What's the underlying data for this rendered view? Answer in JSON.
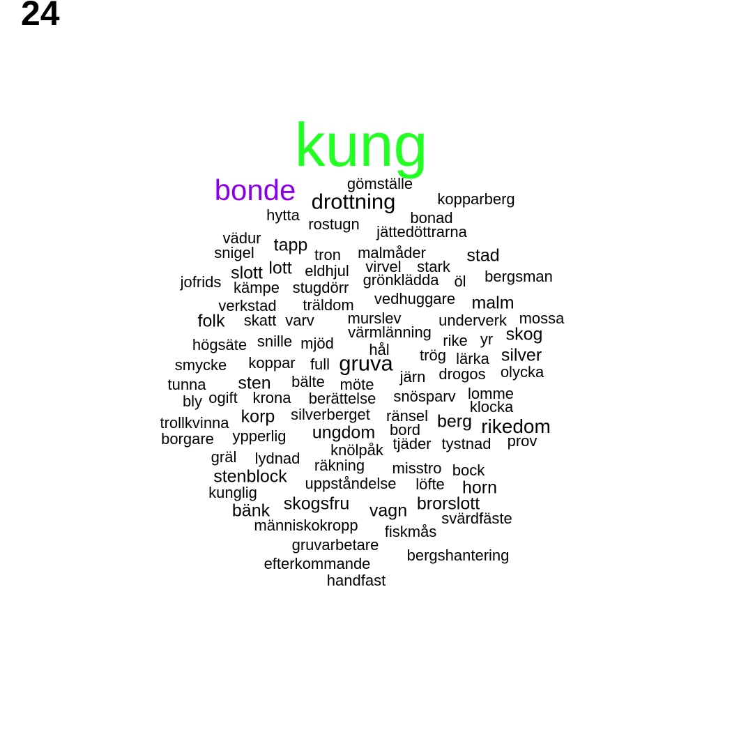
{
  "page_number": "24",
  "colors": {
    "primary": "#22ff22",
    "secondary": "#8a00e6",
    "default": "#000000"
  },
  "words": [
    {
      "text": "kung",
      "weight": 1,
      "color": "primary"
    },
    {
      "text": "bonde",
      "weight": 2,
      "color": "secondary"
    },
    {
      "text": "drottning",
      "weight": 3
    },
    {
      "text": "gömställe",
      "weight": 4
    },
    {
      "text": "kopparberg",
      "weight": 4
    },
    {
      "text": "hytta",
      "weight": 4
    },
    {
      "text": "bonad",
      "weight": 4
    },
    {
      "text": "rostugn",
      "weight": 4
    },
    {
      "text": "jättedöttrarna",
      "weight": 4
    },
    {
      "text": "vädur",
      "weight": 4
    },
    {
      "text": "tapp",
      "weight": 3
    },
    {
      "text": "snigel",
      "weight": 4
    },
    {
      "text": "tron",
      "weight": 4
    },
    {
      "text": "malmåder",
      "weight": 4
    },
    {
      "text": "stad",
      "weight": 3
    },
    {
      "text": "slott",
      "weight": 3
    },
    {
      "text": "lott",
      "weight": 3
    },
    {
      "text": "eldhjul",
      "weight": 4
    },
    {
      "text": "virvel",
      "weight": 4
    },
    {
      "text": "stark",
      "weight": 4
    },
    {
      "text": "bergsman",
      "weight": 4
    },
    {
      "text": "jofrids",
      "weight": 4
    },
    {
      "text": "kämpe",
      "weight": 4
    },
    {
      "text": "stugdörr",
      "weight": 4
    },
    {
      "text": "grönklädda",
      "weight": 4
    },
    {
      "text": "öl",
      "weight": 4
    },
    {
      "text": "vedhuggare",
      "weight": 4
    },
    {
      "text": "malm",
      "weight": 3
    },
    {
      "text": "verkstad",
      "weight": 4
    },
    {
      "text": "träldom",
      "weight": 4
    },
    {
      "text": "folk",
      "weight": 3
    },
    {
      "text": "skatt",
      "weight": 4
    },
    {
      "text": "varv",
      "weight": 4
    },
    {
      "text": "murslev",
      "weight": 4
    },
    {
      "text": "underverk",
      "weight": 4
    },
    {
      "text": "mossa",
      "weight": 4
    },
    {
      "text": "värmlänning",
      "weight": 4
    },
    {
      "text": "skog",
      "weight": 3
    },
    {
      "text": "högsäte",
      "weight": 4
    },
    {
      "text": "snille",
      "weight": 4
    },
    {
      "text": "mjöd",
      "weight": 4
    },
    {
      "text": "rike",
      "weight": 4
    },
    {
      "text": "yr",
      "weight": 4
    },
    {
      "text": "hål",
      "weight": 4
    },
    {
      "text": "smycke",
      "weight": 4
    },
    {
      "text": "koppar",
      "weight": 4
    },
    {
      "text": "full",
      "weight": 4
    },
    {
      "text": "gruva",
      "weight": 3
    },
    {
      "text": "trög",
      "weight": 4
    },
    {
      "text": "lärka",
      "weight": 4
    },
    {
      "text": "silver",
      "weight": 3
    },
    {
      "text": "tunna",
      "weight": 4
    },
    {
      "text": "sten",
      "weight": 3
    },
    {
      "text": "bälte",
      "weight": 4
    },
    {
      "text": "möte",
      "weight": 4
    },
    {
      "text": "järn",
      "weight": 4
    },
    {
      "text": "drogos",
      "weight": 4
    },
    {
      "text": "olycka",
      "weight": 4
    },
    {
      "text": "bly",
      "weight": 4
    },
    {
      "text": "ogift",
      "weight": 4
    },
    {
      "text": "krona",
      "weight": 4
    },
    {
      "text": "berättelse",
      "weight": 4
    },
    {
      "text": "snösparv",
      "weight": 4
    },
    {
      "text": "lomme",
      "weight": 4
    },
    {
      "text": "klocka",
      "weight": 4
    },
    {
      "text": "trollkvinna",
      "weight": 4
    },
    {
      "text": "korp",
      "weight": 3
    },
    {
      "text": "silverberget",
      "weight": 4
    },
    {
      "text": "ränsel",
      "weight": 4
    },
    {
      "text": "berg",
      "weight": 4
    },
    {
      "text": "rikedom",
      "weight": 3
    },
    {
      "text": "borgare",
      "weight": 4
    },
    {
      "text": "ypperlig",
      "weight": 4
    },
    {
      "text": "ungdom",
      "weight": 4
    },
    {
      "text": "bord",
      "weight": 4
    },
    {
      "text": "tjäder",
      "weight": 4
    },
    {
      "text": "tystnad",
      "weight": 4
    },
    {
      "text": "prov",
      "weight": 4
    },
    {
      "text": "knölpåk",
      "weight": 4
    },
    {
      "text": "gräl",
      "weight": 4
    },
    {
      "text": "lydnad",
      "weight": 4
    },
    {
      "text": "räkning",
      "weight": 4
    },
    {
      "text": "misstro",
      "weight": 4
    },
    {
      "text": "bock",
      "weight": 4
    },
    {
      "text": "stenblock",
      "weight": 4
    },
    {
      "text": "uppståndelse",
      "weight": 4
    },
    {
      "text": "löfte",
      "weight": 4
    },
    {
      "text": "horn",
      "weight": 4
    },
    {
      "text": "kunglig",
      "weight": 4
    },
    {
      "text": "skogsfru",
      "weight": 4
    },
    {
      "text": "brorslott",
      "weight": 4
    },
    {
      "text": "bänk",
      "weight": 4
    },
    {
      "text": "vagn",
      "weight": 4
    },
    {
      "text": "svärdfäste",
      "weight": 4
    },
    {
      "text": "människokropp",
      "weight": 4
    },
    {
      "text": "fiskmås",
      "weight": 4
    },
    {
      "text": "gruvarbetare",
      "weight": 4
    },
    {
      "text": "bergshantering",
      "weight": 4
    },
    {
      "text": "efterkommande",
      "weight": 4
    },
    {
      "text": "handfast",
      "weight": 4
    }
  ]
}
